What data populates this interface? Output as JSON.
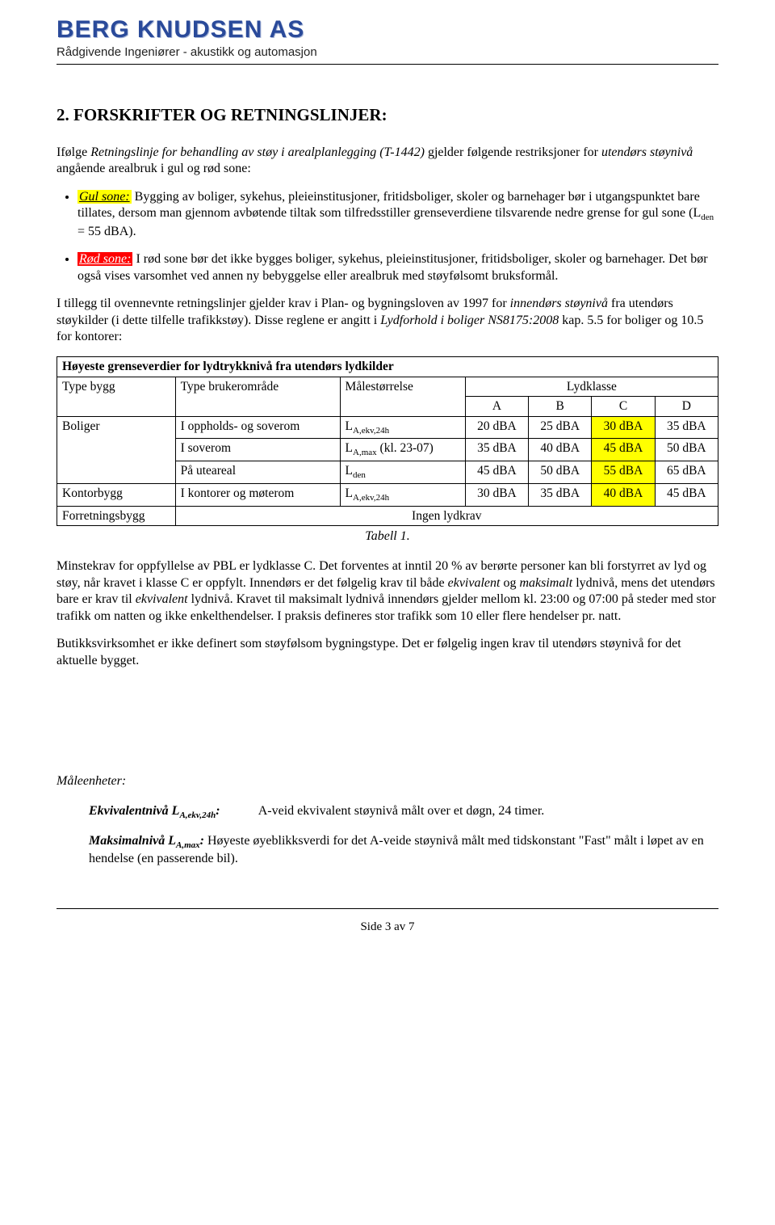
{
  "header": {
    "company": "BERG KNUDSEN AS",
    "subtitle": "Rådgivende Ingeniører - akustikk og automasjon"
  },
  "section_title": "2. FORSKRIFTER OG RETNINGSLINJER:",
  "intro": {
    "prefix": "Ifølge ",
    "doc": "Retningslinje for behandling av støy i arealplanlegging (T-1442)",
    "mid": " gjelder følgende restriksjoner for ",
    "em": "utendørs støynivå",
    "suffix": " angående arealbruk i gul og rød sone:"
  },
  "bullets": {
    "gul_label": "Gul sone:",
    "gul_text": "  Bygging av boliger, sykehus, pleieinstitusjoner, fritidsboliger, skoler og barnehager bør i utgangspunktet bare tillates, dersom man gjennom avbøtende tiltak som tilfredsstiller grenseverdiene tilsvarende nedre grense for gul sone (L",
    "gul_sub": "den",
    "gul_tail": " = 55 dBA).",
    "rod_label": "Rød sone:",
    "rod_text": "  I rød sone bør det ikke bygges boliger, sykehus, pleieinstitusjoner, fritidsboliger, skoler og barnehager. Det bør også vises varsomhet ved annen ny bebyggelse eller arealbruk med støyfølsomt bruksformål."
  },
  "para2": {
    "p1": "I tillegg til ovennevnte retningslinjer gjelder krav i Plan- og bygningsloven av 1997 for ",
    "em1": "innendørs støynivå",
    "p2": " fra utendørs støykilder (i dette tilfelle trafikkstøy). Disse reglene er angitt i ",
    "em2": "Lydforhold i boliger NS8175:2008",
    "p3": "  kap. 5.5 for boliger og 10.5 for kontorer:"
  },
  "table": {
    "title": "Høyeste grenseverdier for lydtrykknivå fra utendørs lydkilder",
    "head": {
      "c1": "Type bygg",
      "c2": "Type brukerområde",
      "c3": "Målestørrelse",
      "c4": "Lydklasse",
      "a": "A",
      "b": "B",
      "c": "C",
      "d": "D"
    },
    "rows": [
      {
        "b": "Boliger",
        "u": "I oppholds- og soverom",
        "m": "L",
        "ms": "A,ekv,24h",
        "a": "20 dBA",
        "bv": "25 dBA",
        "c": "30 dBA",
        "d": "35 dBA"
      },
      {
        "b": "",
        "u": "I soverom",
        "m": "L",
        "ms": "A,max",
        "mtail": " (kl. 23-07)",
        "a": "35 dBA",
        "bv": "40 dBA",
        "c": "45 dBA",
        "d": "50 dBA"
      },
      {
        "b": "",
        "u": "På uteareal",
        "m": "L",
        "ms": "den",
        "mtail": "",
        "a": "45 dBA",
        "bv": "50 dBA",
        "c": "55 dBA",
        "d": "65 dBA"
      },
      {
        "b": "Kontorbygg",
        "u": "I kontorer og møterom",
        "m": "L",
        "ms": "A,ekv,24h",
        "mtail": "",
        "a": "30 dBA",
        "bv": "35 dBA",
        "c": "40 dBA",
        "d": "45 dBA"
      }
    ],
    "last": {
      "b": "Forretningsbygg",
      "txt": "Ingen lydkrav"
    },
    "caption": "Tabell 1."
  },
  "para3": {
    "p1": "Minstekrav for oppfyllelse av PBL er lydklasse C. Det forventes at inntil 20 % av berørte personer kan bli forstyrret av lyd og støy, når kravet i klasse C er oppfylt. Innendørs er det følgelig krav til både ",
    "e1": "ekvivalent",
    "p2": " og ",
    "e2": "maksimalt",
    "p3": " lydnivå, mens det utendørs bare er krav til ",
    "e3": "ekvivalent",
    "p4": " lydnivå. Kravet til maksimalt lydnivå innendørs gjelder mellom kl. 23:00 og 07:00 på steder med stor trafikk om natten og ikke enkelthendelser. I praksis defineres stor trafikk som 10 eller flere hendelser pr. natt."
  },
  "para4": "Butikksvirksomhet er ikke definert som støyfølsom bygningstype. Det er følgelig ingen krav til utendørs støynivå for det aktuelle bygget.",
  "defs": {
    "title": "Måleenheter:",
    "d1": {
      "term": "Ekvivalentnivå L",
      "sub": "A,ekv,24h",
      "colon": ":",
      "gap": "            ",
      "text": "A-veid ekvivalent støynivå målt over et døgn, 24 timer."
    },
    "d2": {
      "term": "Maksimalnivå L",
      "sub": "A,max",
      "colon": ":",
      "text": "   Høyeste øyeblikksverdi for det A-veide støynivå målt med tidskonstant \"Fast\" målt i løpet av en hendelse (en passerende bil)."
    }
  },
  "footer": "Side 3 av 7"
}
